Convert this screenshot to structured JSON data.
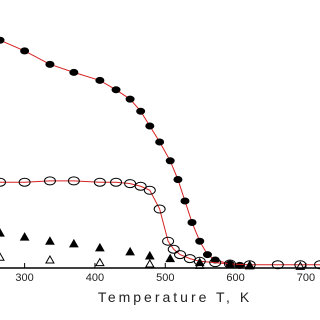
{
  "chart_data": {
    "type": "scatter",
    "x_label": "Temperature T, K",
    "xlim": [
      265,
      720
    ],
    "ylim": [
      0,
      1
    ],
    "xticks": [
      300,
      400,
      500,
      600,
      700
    ],
    "series": [
      {
        "marker": "circle-filled",
        "color": "#000000",
        "line_color": "#d62020",
        "x": [
          265,
          300,
          336,
          370,
          407,
          430,
          450,
          465,
          478,
          492,
          507,
          518,
          528,
          538,
          549,
          560,
          571,
          592,
          606
        ],
        "values": [
          0.85,
          0.81,
          0.76,
          0.73,
          0.7,
          0.665,
          0.63,
          0.585,
          0.53,
          0.47,
          0.4,
          0.33,
          0.25,
          0.17,
          0.1,
          0.05,
          0.03,
          0.015,
          0.01
        ]
      },
      {
        "marker": "circle-open",
        "color": "#000000",
        "line_color": "#d62020",
        "x": [
          265,
          300,
          336,
          370,
          407,
          430,
          450,
          465,
          478,
          492,
          504,
          512,
          521,
          535,
          549,
          571,
          592,
          620,
          660,
          692,
          720
        ],
        "values": [
          0.32,
          0.32,
          0.325,
          0.325,
          0.32,
          0.32,
          0.315,
          0.305,
          0.29,
          0.22,
          0.1,
          0.07,
          0.05,
          0.035,
          0.025,
          0.02,
          0.015,
          0.012,
          0.012,
          0.012,
          0.012
        ]
      },
      {
        "marker": "triangle-filled",
        "color": "#000000",
        "x": [
          265,
          300,
          336,
          370,
          407,
          450,
          478,
          507,
          549,
          592,
          620
        ],
        "values": [
          0.13,
          0.115,
          0.1,
          0.09,
          0.075,
          0.06,
          0.045,
          0.035,
          0.02,
          0.012,
          0.01
        ]
      },
      {
        "marker": "triangle-open",
        "color": "#000000",
        "x": [
          265,
          336,
          407,
          478,
          549,
          620,
          692
        ],
        "values": [
          0.04,
          0.03,
          0.02,
          0.015,
          0.01,
          0.008,
          0.006
        ]
      }
    ]
  }
}
